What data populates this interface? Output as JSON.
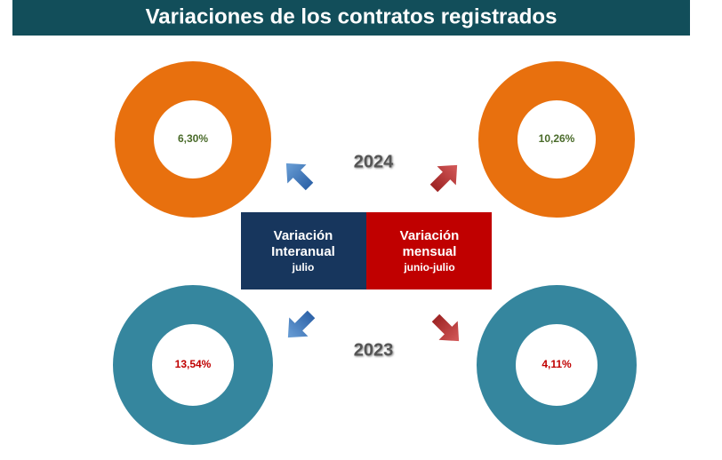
{
  "title": "Variaciones de los contratos registrados",
  "years": [
    "2024",
    "2023"
  ],
  "boxes": [
    {
      "lines": [
        "Variación",
        "Interanual",
        "julio"
      ]
    },
    {
      "lines": [
        "Variación",
        "mensual",
        "junio-julio"
      ]
    }
  ],
  "donuts": [
    {
      "label": "6,30%"
    },
    {
      "label": "10,26%"
    },
    {
      "label": "13,54%"
    },
    {
      "label": "4,11%"
    }
  ]
}
